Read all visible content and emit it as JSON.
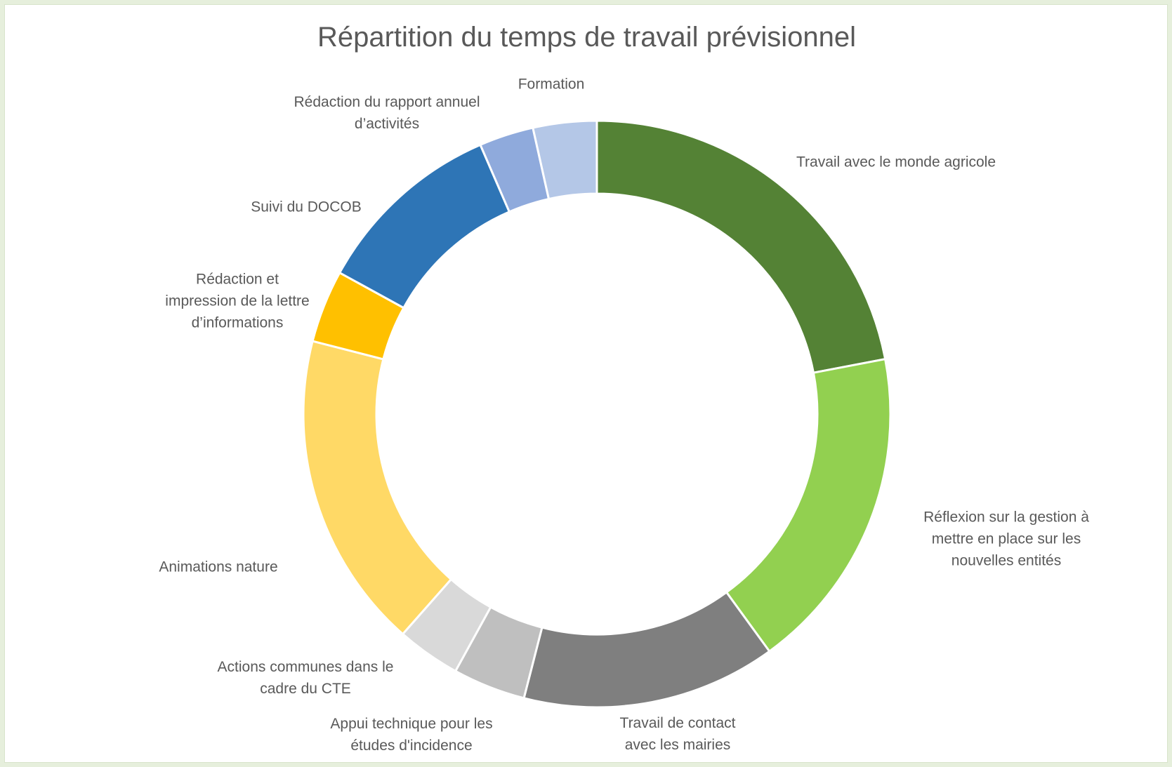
{
  "chart_data": {
    "type": "donut",
    "title": "Répartition du temps de travail prévisionnel",
    "categories": [
      "Travail avec le monde agricole",
      "Réflexion sur la gestion à mettre en place sur les nouvelles entités",
      "Travail de contact avec les mairies",
      "Appui technique pour les études d'incidence",
      "Actions communes dans le cadre du CTE",
      "Animations nature",
      "Rédaction et impression de la lettre d’informations",
      "Suivi du DOCOB",
      "Rédaction du rapport annuel d’activités",
      "Formation"
    ],
    "values": [
      22,
      18,
      14,
      4,
      3.5,
      17.5,
      4,
      10.5,
      3,
      3.5
    ],
    "colors": [
      "#548235",
      "#92d050",
      "#7f7f7f",
      "#bfbfbf",
      "#d9d9d9",
      "#ffd966",
      "#ffc000",
      "#2e75b6",
      "#8faadc",
      "#b4c7e7"
    ]
  }
}
